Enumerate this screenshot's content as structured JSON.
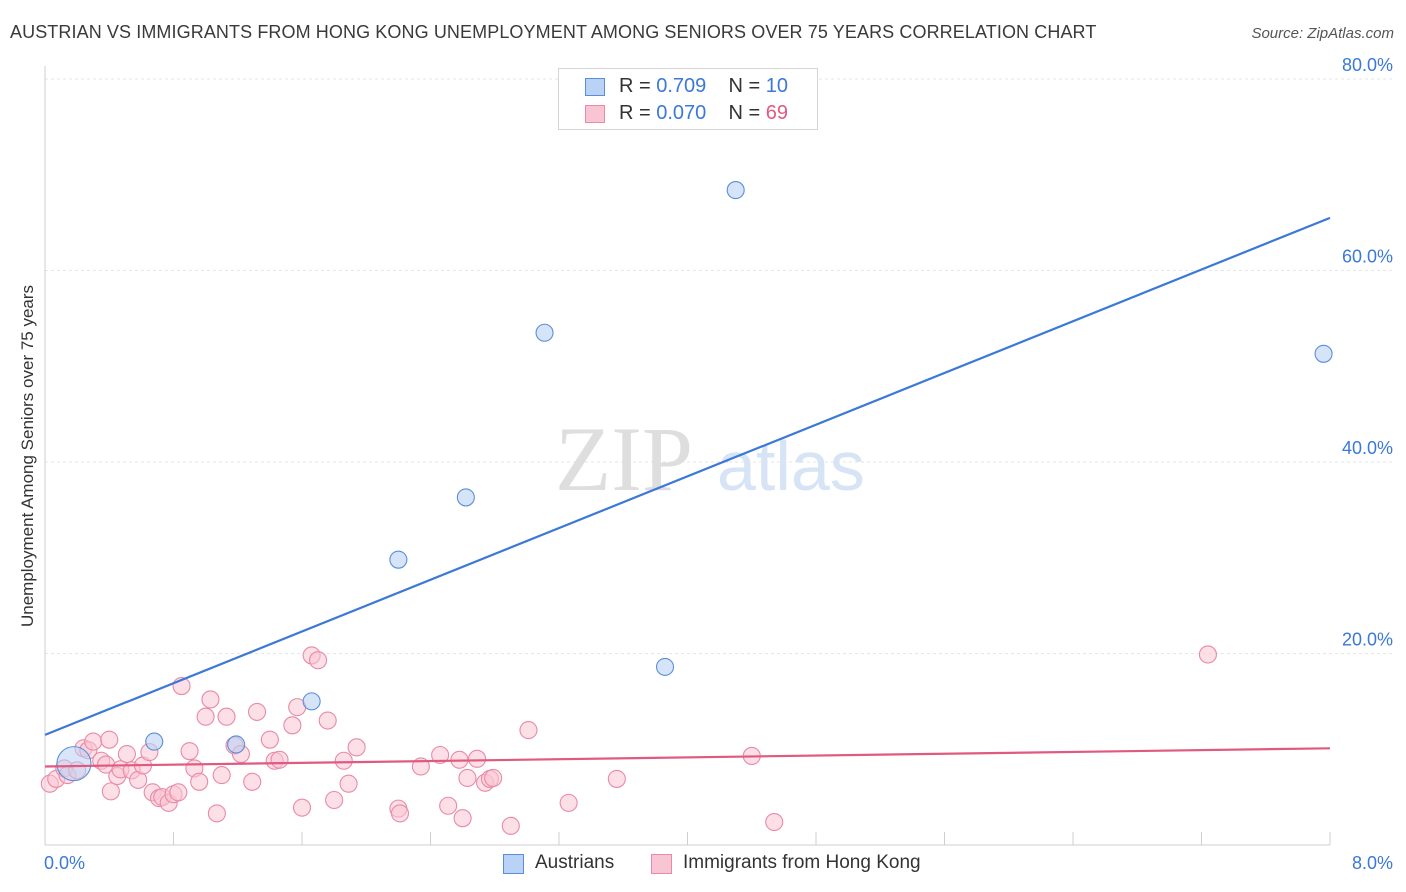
{
  "title": "AUSTRIAN VS IMMIGRANTS FROM HONG KONG UNEMPLOYMENT AMONG SENIORS OVER 75 YEARS CORRELATION CHART",
  "source": "Source: ZipAtlas.com",
  "colors": {
    "austrians": "#3b78d8",
    "hongkong": "#e0597f",
    "austrians_fill": "#b9d2f5",
    "hongkong_fill": "#f9c5d4"
  },
  "legend": {
    "austrians": {
      "r_label": "R = ",
      "r_value": "0.709",
      "n_label": "N = ",
      "n_value": "10"
    },
    "hongkong": {
      "r_label": "R = ",
      "r_value": "0.070",
      "n_label": "N = ",
      "n_value": "69"
    }
  },
  "bottom_legend": {
    "austrians": "Austrians",
    "hongkong": "Immigrants from Hong Kong"
  },
  "chart_data": {
    "type": "scatter",
    "title": "AUSTRIAN VS IMMIGRANTS FROM HONG KONG UNEMPLOYMENT AMONG SENIORS OVER 75 YEARS CORRELATION CHART",
    "xlabel": "",
    "ylabel": "Unemployment Among Seniors over 75 years",
    "xlim": [
      0,
      8
    ],
    "ylim": [
      0,
      80
    ],
    "x_tick_labels": [
      "0.0%",
      "8.0%"
    ],
    "y_ticks": [
      20,
      40,
      60,
      80
    ],
    "y_tick_labels": [
      "20.0%",
      "40.0%",
      "60.0%",
      "80.0%"
    ],
    "watermark": {
      "zip": "ZIP",
      "atlas": "atlas"
    },
    "series": [
      {
        "name": "Austrians",
        "trend": {
          "x": [
            0,
            8
          ],
          "y": [
            11.5,
            65.5
          ]
        },
        "points": [
          {
            "x": 0.18,
            "y": 8.5,
            "big": true
          },
          {
            "x": 0.68,
            "y": 10.8
          },
          {
            "x": 1.19,
            "y": 10.5
          },
          {
            "x": 1.66,
            "y": 15.0
          },
          {
            "x": 2.2,
            "y": 29.8
          },
          {
            "x": 2.62,
            "y": 36.3
          },
          {
            "x": 3.11,
            "y": 53.5
          },
          {
            "x": 3.86,
            "y": 18.6
          },
          {
            "x": 4.3,
            "y": 68.4
          },
          {
            "x": 7.96,
            "y": 51.3
          }
        ]
      },
      {
        "name": "Immigrants from Hong Kong",
        "trend": {
          "x": [
            0,
            8
          ],
          "y": [
            8.2,
            10.1
          ]
        },
        "points": [
          {
            "x": 0.03,
            "y": 6.4
          },
          {
            "x": 0.07,
            "y": 6.9
          },
          {
            "x": 0.12,
            "y": 8.0
          },
          {
            "x": 0.14,
            "y": 7.3
          },
          {
            "x": 0.2,
            "y": 7.8
          },
          {
            "x": 0.24,
            "y": 10.1
          },
          {
            "x": 0.27,
            "y": 9.9
          },
          {
            "x": 0.3,
            "y": 10.8
          },
          {
            "x": 0.35,
            "y": 8.8
          },
          {
            "x": 0.38,
            "y": 8.4
          },
          {
            "x": 0.4,
            "y": 11.0
          },
          {
            "x": 0.41,
            "y": 5.6
          },
          {
            "x": 0.45,
            "y": 7.2
          },
          {
            "x": 0.47,
            "y": 7.9
          },
          {
            "x": 0.51,
            "y": 9.5
          },
          {
            "x": 0.54,
            "y": 7.8
          },
          {
            "x": 0.58,
            "y": 6.8
          },
          {
            "x": 0.61,
            "y": 8.3
          },
          {
            "x": 0.65,
            "y": 9.7
          },
          {
            "x": 0.67,
            "y": 5.5
          },
          {
            "x": 0.71,
            "y": 4.9
          },
          {
            "x": 0.73,
            "y": 5.0
          },
          {
            "x": 0.77,
            "y": 4.4
          },
          {
            "x": 0.8,
            "y": 5.3
          },
          {
            "x": 0.83,
            "y": 5.5
          },
          {
            "x": 0.85,
            "y": 16.6
          },
          {
            "x": 0.9,
            "y": 9.8
          },
          {
            "x": 0.93,
            "y": 8.0
          },
          {
            "x": 0.96,
            "y": 6.6
          },
          {
            "x": 1.0,
            "y": 13.4
          },
          {
            "x": 1.03,
            "y": 15.2
          },
          {
            "x": 1.07,
            "y": 3.3
          },
          {
            "x": 1.1,
            "y": 7.3
          },
          {
            "x": 1.13,
            "y": 13.4
          },
          {
            "x": 1.18,
            "y": 10.4
          },
          {
            "x": 1.22,
            "y": 9.5
          },
          {
            "x": 1.29,
            "y": 6.6
          },
          {
            "x": 1.32,
            "y": 13.9
          },
          {
            "x": 1.4,
            "y": 11.0
          },
          {
            "x": 1.43,
            "y": 8.8
          },
          {
            "x": 1.46,
            "y": 8.9
          },
          {
            "x": 1.54,
            "y": 12.5
          },
          {
            "x": 1.57,
            "y": 14.4
          },
          {
            "x": 1.6,
            "y": 3.9
          },
          {
            "x": 1.66,
            "y": 19.8
          },
          {
            "x": 1.7,
            "y": 19.3
          },
          {
            "x": 1.76,
            "y": 13.0
          },
          {
            "x": 1.8,
            "y": 4.7
          },
          {
            "x": 1.86,
            "y": 8.8
          },
          {
            "x": 1.89,
            "y": 6.4
          },
          {
            "x": 1.94,
            "y": 10.2
          },
          {
            "x": 2.2,
            "y": 3.8
          },
          {
            "x": 2.21,
            "y": 3.3
          },
          {
            "x": 2.34,
            "y": 8.2
          },
          {
            "x": 2.46,
            "y": 9.4
          },
          {
            "x": 2.51,
            "y": 4.1
          },
          {
            "x": 2.58,
            "y": 8.9
          },
          {
            "x": 2.6,
            "y": 2.8
          },
          {
            "x": 2.63,
            "y": 7.0
          },
          {
            "x": 2.69,
            "y": 9.0
          },
          {
            "x": 2.74,
            "y": 6.5
          },
          {
            "x": 2.77,
            "y": 6.9
          },
          {
            "x": 2.79,
            "y": 7.0
          },
          {
            "x": 2.9,
            "y": 2.0
          },
          {
            "x": 3.01,
            "y": 12.0
          },
          {
            "x": 3.26,
            "y": 4.4
          },
          {
            "x": 3.56,
            "y": 6.9
          },
          {
            "x": 4.4,
            "y": 9.3
          },
          {
            "x": 4.54,
            "y": 2.4
          },
          {
            "x": 7.24,
            "y": 19.9
          }
        ]
      }
    ]
  }
}
